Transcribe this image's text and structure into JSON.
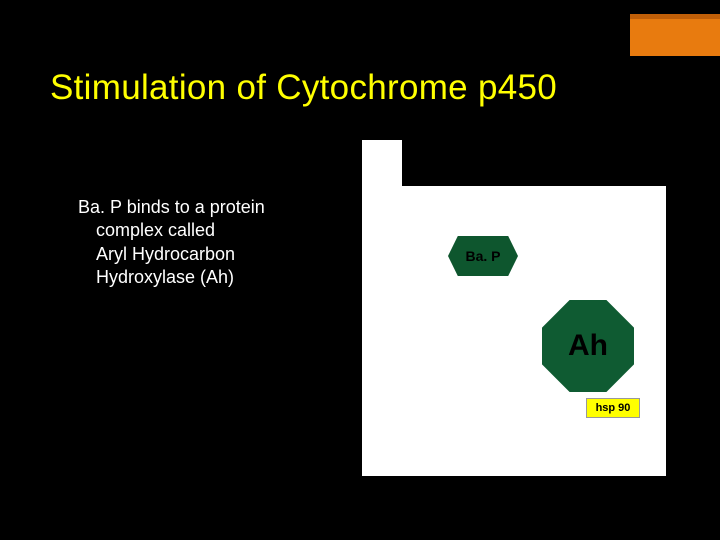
{
  "slide": {
    "title": "Stimulation of Cytochrome p450",
    "title_color": "#ffff00",
    "title_fontsize": 35,
    "background_color": "#000000",
    "accent": {
      "fill": "#e87b0f",
      "border_top": "#c05f08"
    },
    "body": {
      "line1": "Ba. P binds to a protein",
      "line2": "complex called",
      "line3": "Aryl Hydrocarbon",
      "line4": "Hydroxylase (Ah)",
      "text_color": "#ffffff",
      "fontsize": 18
    },
    "diagram": {
      "panel_bg": "#ffffff",
      "bap": {
        "label": "Ba. P",
        "shape": "hexagon",
        "fill": "#0e562e",
        "text_color": "#000000"
      },
      "ah": {
        "label": "Ah",
        "shape": "octagon",
        "fill": "#0f5b32",
        "text_color": "#000000"
      },
      "hsp90": {
        "label": "hsp 90",
        "shape": "rect",
        "fill": "#ffff00",
        "text_color": "#000000"
      }
    }
  }
}
